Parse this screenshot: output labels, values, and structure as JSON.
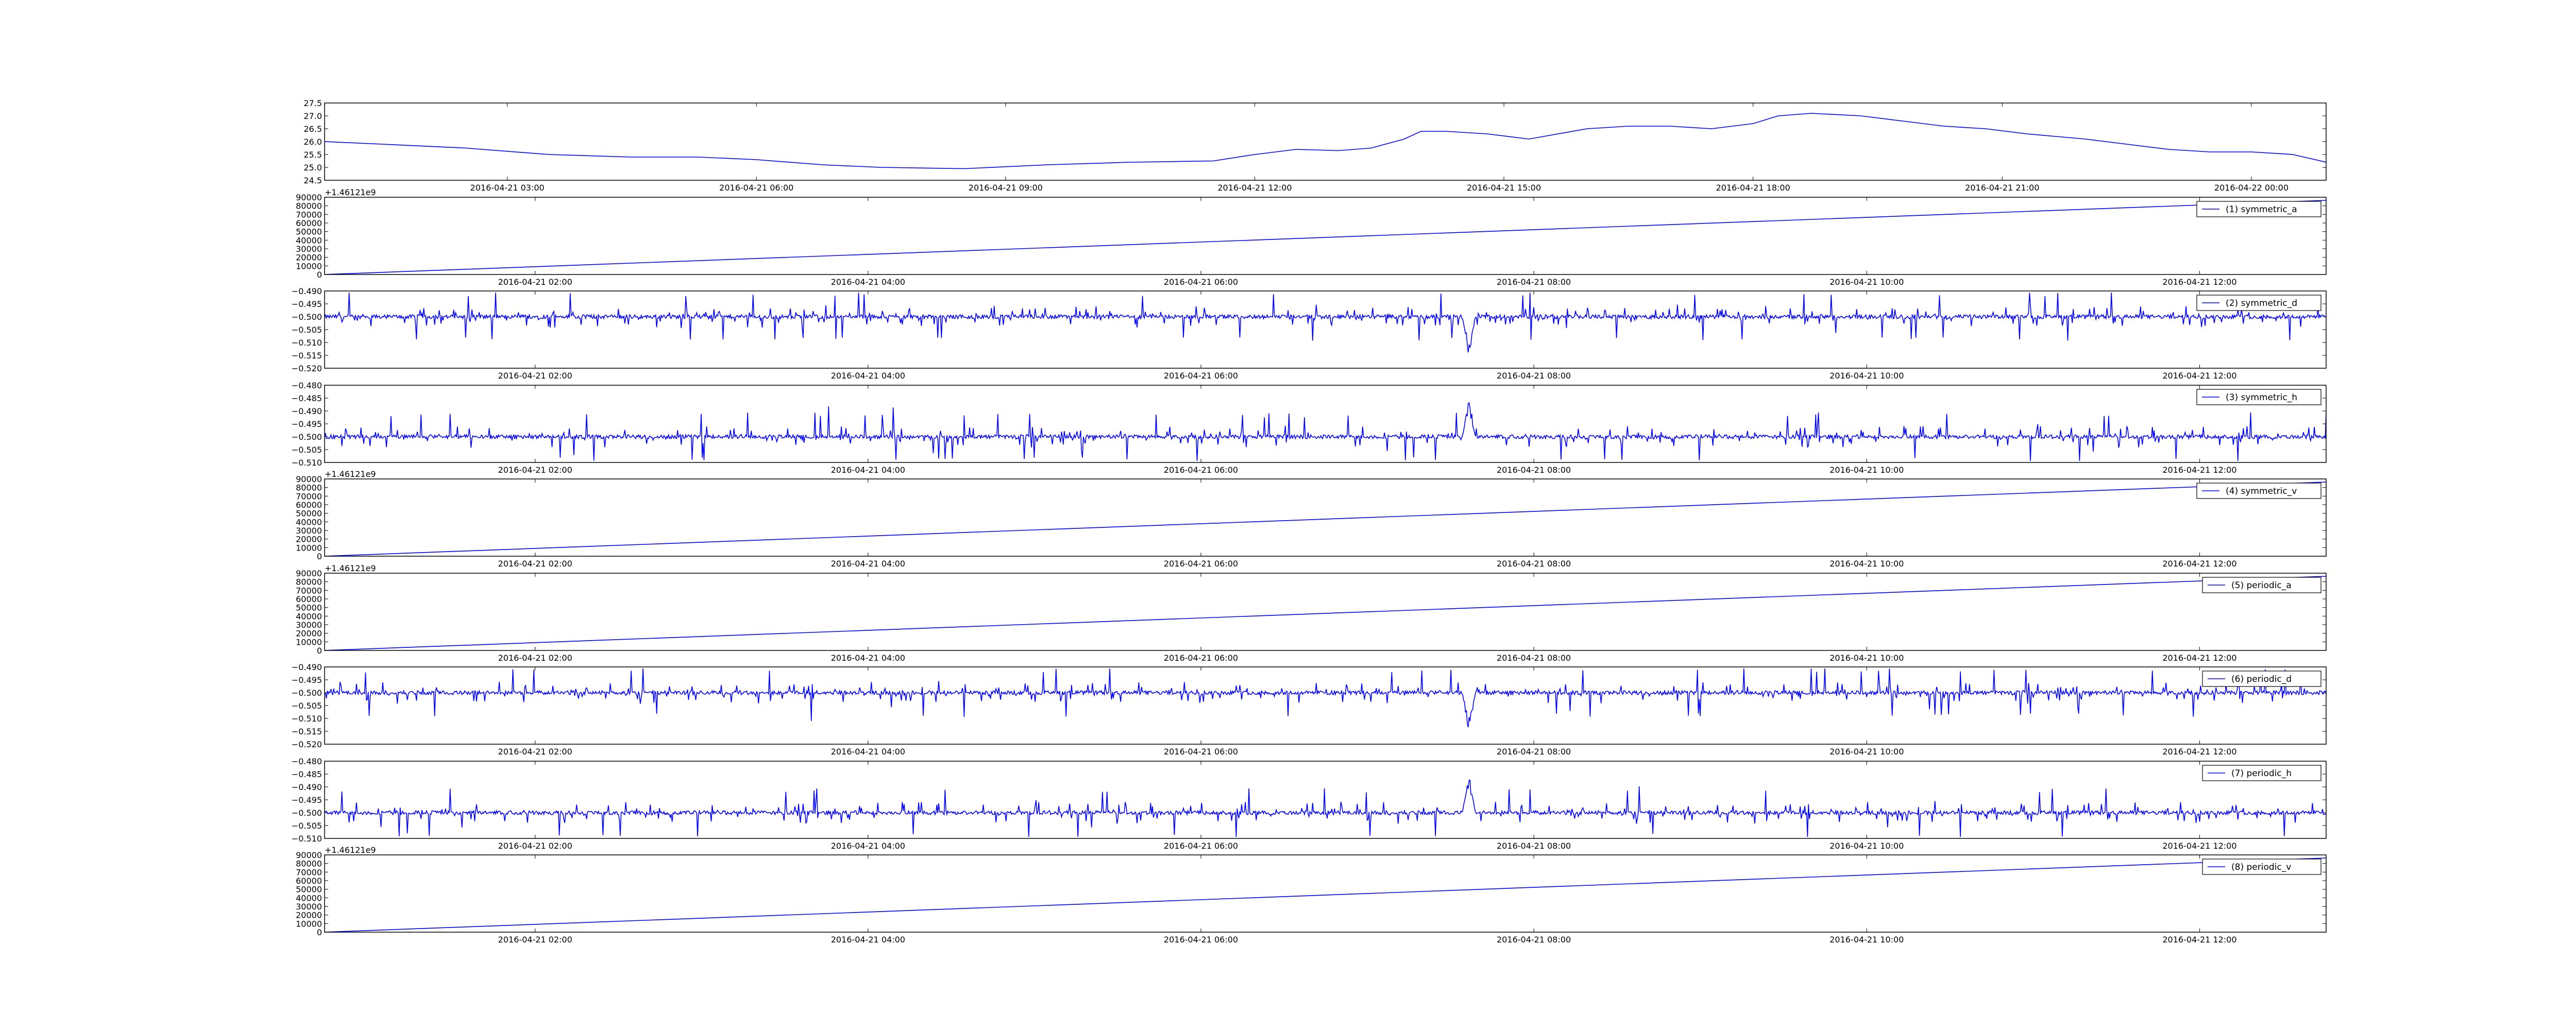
{
  "figure": {
    "line_color": "#0000ff",
    "axis_color": "#000000",
    "background": "#ffffff"
  },
  "chart_data": [
    {
      "type": "line",
      "title": "",
      "xlabel": "",
      "ylabel": "",
      "legend": null,
      "grid": false,
      "ylim": [
        24.5,
        27.5
      ],
      "yticks": [
        "24.5",
        "25.0",
        "25.5",
        "26.0",
        "26.5",
        "27.0",
        "27.5"
      ],
      "xlim_hours": [
        0.8,
        24.9
      ],
      "xtick_positions_hours": [
        3,
        6,
        9,
        12,
        15,
        18,
        21,
        24
      ],
      "xtick_labels": [
        "2016-04-21 03:00",
        "2016-04-21 06:00",
        "2016-04-21 09:00",
        "2016-04-21 12:00",
        "2016-04-21 15:00",
        "2016-04-21 18:00",
        "2016-04-21 21:00",
        "2016-04-22 00:00"
      ],
      "series": [
        {
          "x_hours": [
            0.8,
            1.5,
            2.5,
            3.5,
            4.5,
            5.3,
            6.0,
            6.8,
            7.5,
            8.5,
            9.5,
            10.5,
            11.5,
            12.0,
            12.5,
            13.0,
            13.4,
            13.8,
            14.0,
            14.3,
            14.8,
            15.3,
            16.0,
            16.5,
            17.0,
            17.5,
            18.0,
            18.3,
            18.7,
            19.3,
            19.8,
            20.3,
            20.8,
            21.3,
            22.0,
            22.5,
            23.0,
            23.5,
            24.0,
            24.5,
            24.9
          ],
          "values": [
            26.0,
            25.9,
            25.75,
            25.5,
            25.4,
            25.4,
            25.3,
            25.1,
            25.0,
            24.95,
            25.1,
            25.2,
            25.25,
            25.5,
            25.7,
            25.65,
            25.75,
            26.1,
            26.4,
            26.4,
            26.3,
            26.1,
            26.5,
            26.6,
            26.6,
            26.5,
            26.7,
            27.0,
            27.1,
            27.0,
            26.8,
            26.6,
            26.5,
            26.3,
            26.1,
            25.9,
            25.7,
            25.6,
            25.6,
            25.5,
            25.2
          ]
        }
      ]
    },
    {
      "type": "line",
      "title": "",
      "ylim": [
        0,
        90000
      ],
      "yticks": [
        "0",
        "10000",
        "20000",
        "30000",
        "40000",
        "50000",
        "60000",
        "70000",
        "80000",
        "90000"
      ],
      "offset_text": "+1.46121e9",
      "xlim_hours": [
        0,
        24.05
      ],
      "xtick_positions_hours": [
        2.53,
        6.53,
        10.53,
        14.53,
        18.53,
        22.53
      ],
      "xtick_labels": [
        "2016-04-21 02:00",
        "2016-04-21 04:00",
        "2016-04-21 06:00",
        "2016-04-21 08:00",
        "2016-04-21 10:00",
        "2016-04-21 12:00"
      ],
      "signal": "ramp",
      "legend": {
        "position": "top-right",
        "entries": [
          "(1) symmetric_a"
        ]
      },
      "series": [
        {
          "name": "(1) symmetric_a",
          "x_hours": [
            0,
            24.05
          ],
          "values": [
            0,
            86400
          ]
        }
      ]
    },
    {
      "type": "line",
      "title": "",
      "ylim": [
        -0.52,
        -0.49
      ],
      "yticks": [
        "−0.520",
        "−0.515",
        "−0.510",
        "−0.505",
        "−0.500",
        "−0.495",
        "−0.490"
      ],
      "xlim_hours": [
        0,
        24.05
      ],
      "xtick_positions_hours": [
        2.53,
        6.53,
        10.53,
        14.53,
        18.53,
        22.53
      ],
      "xtick_labels": [
        "2016-04-21 02:00",
        "2016-04-21 04:00",
        "2016-04-21 06:00",
        "2016-04-21 08:00",
        "2016-04-21 10:00",
        "2016-04-21 12:00"
      ],
      "signal": "noise",
      "baseline": -0.5,
      "noise_amplitude": 0.0025,
      "spike": {
        "x_hours": 13.75,
        "value": -0.516
      },
      "legend": {
        "position": "top-right",
        "entries": [
          "(2) symmetric_d"
        ]
      },
      "series": [
        {
          "name": "(2) symmetric_d",
          "baseline": -0.5,
          "min": -0.516,
          "max": -0.493
        }
      ]
    },
    {
      "type": "line",
      "title": "",
      "ylim": [
        -0.51,
        -0.48
      ],
      "yticks": [
        "−0.510",
        "−0.505",
        "−0.500",
        "−0.495",
        "−0.490",
        "−0.485",
        "−0.480"
      ],
      "xlim_hours": [
        0,
        24.05
      ],
      "xtick_positions_hours": [
        2.53,
        6.53,
        10.53,
        14.53,
        18.53,
        22.53
      ],
      "xtick_labels": [
        "2016-04-21 02:00",
        "2016-04-21 04:00",
        "2016-04-21 06:00",
        "2016-04-21 08:00",
        "2016-04-21 10:00",
        "2016-04-21 12:00"
      ],
      "signal": "noise",
      "baseline": -0.5,
      "noise_amplitude": 0.0025,
      "spike": {
        "x_hours": 13.75,
        "value": -0.484
      },
      "legend": {
        "position": "top-right",
        "entries": [
          "(3) symmetric_h"
        ]
      },
      "series": [
        {
          "name": "(3) symmetric_h",
          "baseline": -0.5,
          "min": -0.507,
          "max": -0.484
        }
      ]
    },
    {
      "type": "line",
      "title": "",
      "ylim": [
        0,
        90000
      ],
      "yticks": [
        "0",
        "10000",
        "20000",
        "30000",
        "40000",
        "50000",
        "60000",
        "70000",
        "80000",
        "90000"
      ],
      "offset_text": "+1.46121e9",
      "xlim_hours": [
        0,
        24.05
      ],
      "xtick_positions_hours": [
        2.53,
        6.53,
        10.53,
        14.53,
        18.53,
        22.53
      ],
      "xtick_labels": [
        "2016-04-21 02:00",
        "2016-04-21 04:00",
        "2016-04-21 06:00",
        "2016-04-21 08:00",
        "2016-04-21 10:00",
        "2016-04-21 12:00"
      ],
      "signal": "ramp",
      "legend": {
        "position": "top-right",
        "entries": [
          "(4) symmetric_v"
        ]
      },
      "series": [
        {
          "name": "(4) symmetric_v",
          "x_hours": [
            0,
            24.05
          ],
          "values": [
            0,
            86400
          ]
        }
      ]
    },
    {
      "type": "line",
      "title": "",
      "ylim": [
        0,
        90000
      ],
      "yticks": [
        "0",
        "10000",
        "20000",
        "30000",
        "40000",
        "50000",
        "60000",
        "70000",
        "80000",
        "90000"
      ],
      "offset_text": "+1.46121e9",
      "xlim_hours": [
        0,
        24.05
      ],
      "xtick_positions_hours": [
        2.53,
        6.53,
        10.53,
        14.53,
        18.53,
        22.53
      ],
      "xtick_labels": [
        "2016-04-21 02:00",
        "2016-04-21 04:00",
        "2016-04-21 06:00",
        "2016-04-21 08:00",
        "2016-04-21 10:00",
        "2016-04-21 12:00"
      ],
      "signal": "ramp",
      "legend": {
        "position": "top-right",
        "entries": [
          "(5) periodic_a"
        ]
      },
      "series": [
        {
          "name": "(5) periodic_a",
          "x_hours": [
            0,
            24.05
          ],
          "values": [
            0,
            86400
          ]
        }
      ]
    },
    {
      "type": "line",
      "title": "",
      "ylim": [
        -0.52,
        -0.49
      ],
      "yticks": [
        "−0.520",
        "−0.515",
        "−0.510",
        "−0.505",
        "−0.500",
        "−0.495",
        "−0.490"
      ],
      "xlim_hours": [
        0,
        24.05
      ],
      "xtick_positions_hours": [
        2.53,
        6.53,
        10.53,
        14.53,
        18.53,
        22.53
      ],
      "xtick_labels": [
        "2016-04-21 02:00",
        "2016-04-21 04:00",
        "2016-04-21 06:00",
        "2016-04-21 08:00",
        "2016-04-21 10:00",
        "2016-04-21 12:00"
      ],
      "signal": "noise",
      "baseline": -0.5,
      "noise_amplitude": 0.0025,
      "spike": {
        "x_hours": 13.75,
        "value": -0.516
      },
      "legend": {
        "position": "top-right",
        "entries": [
          "(6) periodic_d"
        ]
      },
      "series": [
        {
          "name": "(6) periodic_d",
          "baseline": -0.5,
          "min": -0.516,
          "max": -0.493
        }
      ]
    },
    {
      "type": "line",
      "title": "",
      "ylim": [
        -0.51,
        -0.48
      ],
      "yticks": [
        "−0.510",
        "−0.505",
        "−0.500",
        "−0.495",
        "−0.490",
        "−0.485",
        "−0.480"
      ],
      "xlim_hours": [
        0,
        24.05
      ],
      "xtick_positions_hours": [
        2.53,
        6.53,
        10.53,
        14.53,
        18.53,
        22.53
      ],
      "xtick_labels": [
        "2016-04-21 02:00",
        "2016-04-21 04:00",
        "2016-04-21 06:00",
        "2016-04-21 08:00",
        "2016-04-21 10:00",
        "2016-04-21 12:00"
      ],
      "signal": "noise",
      "baseline": -0.5,
      "noise_amplitude": 0.0025,
      "spike": {
        "x_hours": 13.75,
        "value": -0.484
      },
      "legend": {
        "position": "top-right",
        "entries": [
          "(7) periodic_h"
        ]
      },
      "series": [
        {
          "name": "(7) periodic_h",
          "baseline": -0.5,
          "min": -0.507,
          "max": -0.484
        }
      ]
    },
    {
      "type": "line",
      "title": "",
      "ylim": [
        0,
        90000
      ],
      "yticks": [
        "0",
        "10000",
        "20000",
        "30000",
        "40000",
        "50000",
        "60000",
        "70000",
        "80000",
        "90000"
      ],
      "offset_text": "+1.46121e9",
      "xlim_hours": [
        0,
        24.05
      ],
      "xtick_positions_hours": [
        2.53,
        6.53,
        10.53,
        14.53,
        18.53,
        22.53
      ],
      "xtick_labels": [
        "2016-04-21 02:00",
        "2016-04-21 04:00",
        "2016-04-21 06:00",
        "2016-04-21 08:00",
        "2016-04-21 10:00",
        "2016-04-21 12:00"
      ],
      "signal": "ramp",
      "legend": {
        "position": "top-right",
        "entries": [
          "(8) periodic_v"
        ]
      },
      "series": [
        {
          "name": "(8) periodic_v",
          "x_hours": [
            0,
            24.05
          ],
          "values": [
            0,
            86400
          ]
        }
      ]
    }
  ]
}
